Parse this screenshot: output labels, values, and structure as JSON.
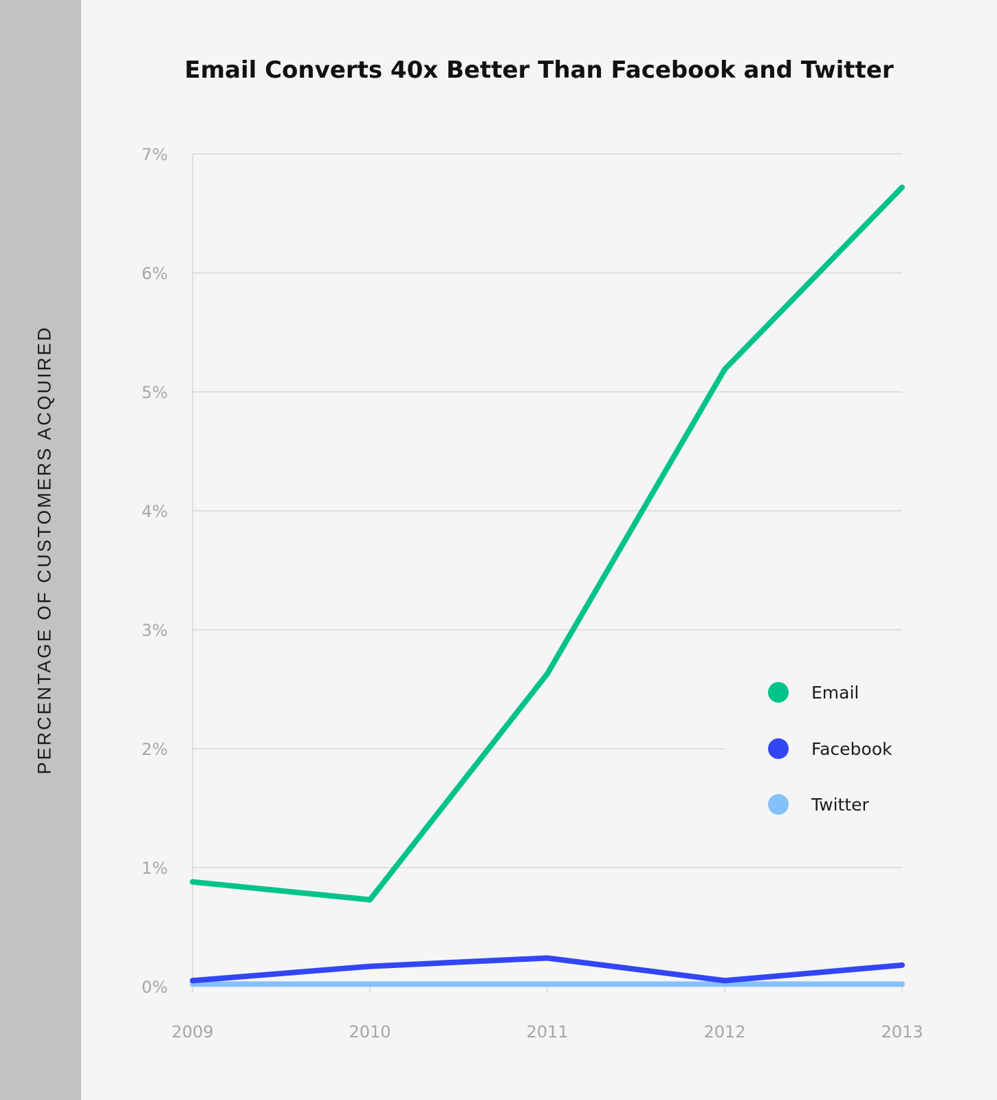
{
  "chart_data": {
    "type": "line",
    "title": "Email Converts 40x Better Than Facebook and Twitter",
    "xlabel": "",
    "ylabel": "PERCENTAGE OF CUSTOMERS ACQUIRED",
    "x": [
      "2009",
      "2010",
      "2011",
      "2012",
      "2013"
    ],
    "ylim": [
      0,
      7
    ],
    "yticks": [
      0,
      1,
      2,
      3,
      4,
      5,
      6,
      7
    ],
    "ytick_labels": [
      "0%",
      "1%",
      "2%",
      "3%",
      "4%",
      "5%",
      "6%",
      "7%"
    ],
    "grid": true,
    "legend_position": "right",
    "series": [
      {
        "name": "Email",
        "color": "#00c389",
        "values": [
          0.88,
          0.73,
          2.63,
          5.19,
          6.72
        ]
      },
      {
        "name": "Facebook",
        "color": "#3346f5",
        "values": [
          0.05,
          0.17,
          0.24,
          0.05,
          0.18
        ]
      },
      {
        "name": "Twitter",
        "color": "#85c1f9",
        "values": [
          0.02,
          0.02,
          0.02,
          0.02,
          0.02
        ]
      }
    ]
  }
}
